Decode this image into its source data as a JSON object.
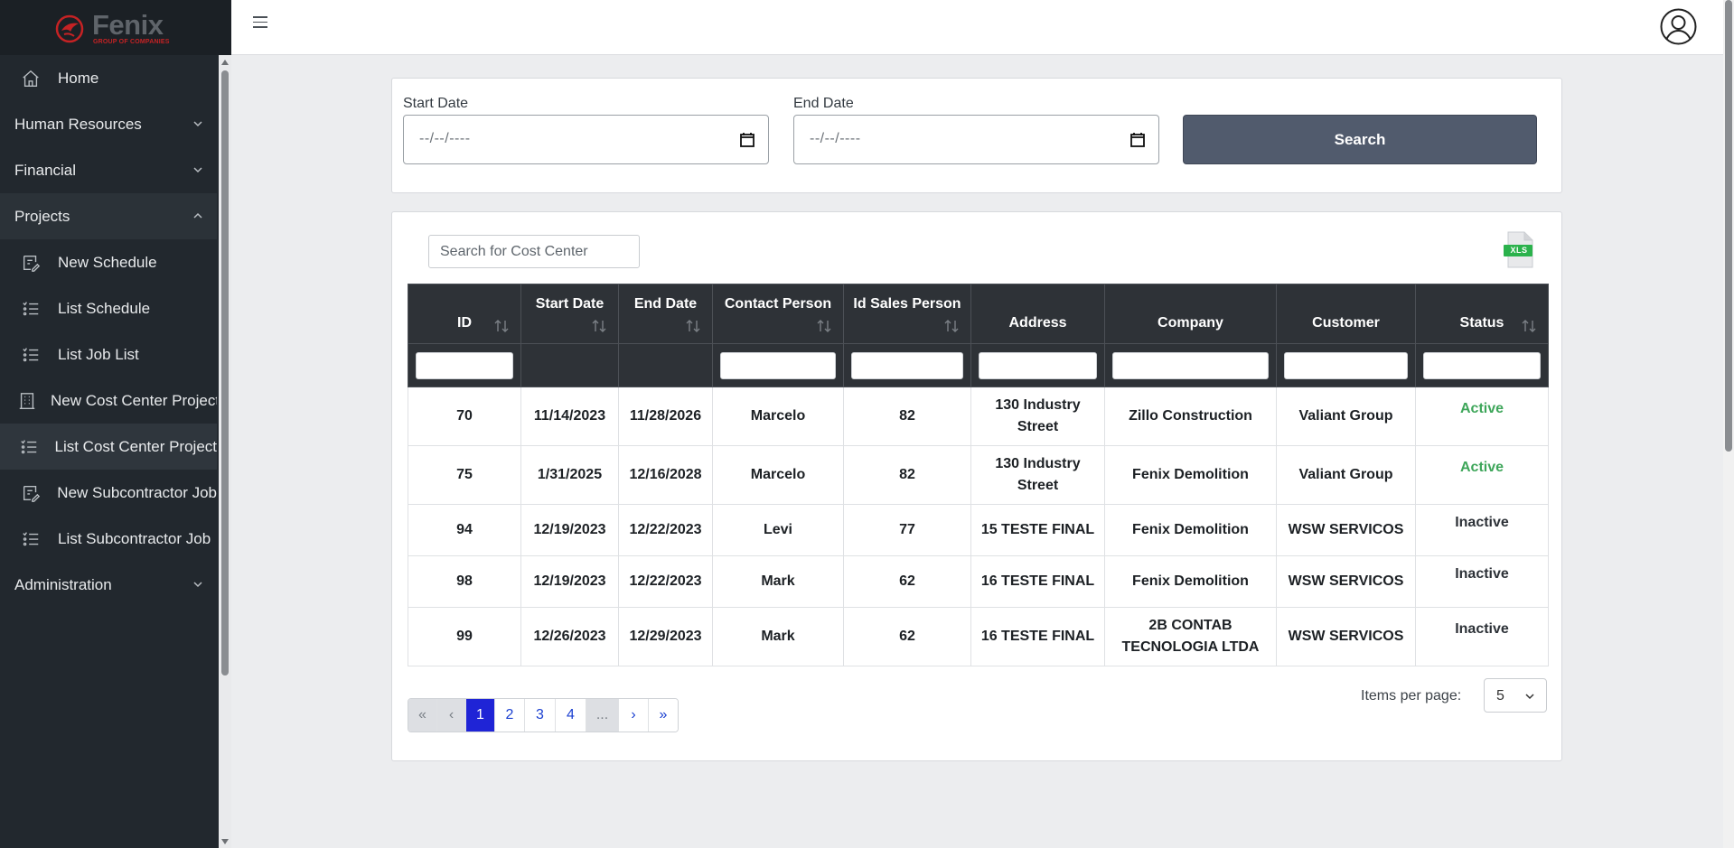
{
  "brand": {
    "name": "Fenix",
    "tagline": "GROUP OF COMPANIES"
  },
  "sidebar": {
    "items": [
      {
        "label": "Home",
        "icon": "home-icon"
      },
      {
        "label": "Human Resources",
        "icon": "chevron-down-icon"
      },
      {
        "label": "Financial",
        "icon": "chevron-down-icon"
      },
      {
        "label": "Projects",
        "icon": "chevron-up-icon"
      },
      {
        "label": "New Schedule",
        "icon": "edit-note-icon"
      },
      {
        "label": "List Schedule",
        "icon": "list-icon"
      },
      {
        "label": "List Job List",
        "icon": "list-icon"
      },
      {
        "label": "New Cost Center Project",
        "icon": "building-icon"
      },
      {
        "label": "List Cost Center Project",
        "icon": "list-icon"
      },
      {
        "label": "New Subcontractor Job",
        "icon": "edit-note-icon"
      },
      {
        "label": "List Subcontractor Job",
        "icon": "list-icon"
      },
      {
        "label": "Administration",
        "icon": "chevron-down-icon"
      }
    ]
  },
  "filters": {
    "start_label": "Start Date",
    "end_label": "End Date",
    "date_placeholder": "--/--/----",
    "search_label": "Search"
  },
  "table": {
    "search_placeholder": "Search for Cost Center",
    "export_icon_label": "XLS",
    "columns": [
      "ID",
      "Start Date",
      "End Date",
      "Contact Person",
      "Id Sales Person",
      "Address",
      "Company",
      "Customer",
      "Status"
    ],
    "rows": [
      [
        "70",
        "11/14/2023",
        "11/28/2026",
        "Marcelo",
        "82",
        "130 Industry Street",
        "Zillo Construction",
        "Valiant Group",
        "Active"
      ],
      [
        "75",
        "1/31/2025",
        "12/16/2028",
        "Marcelo",
        "82",
        "130 Industry Street",
        "Fenix Demolition",
        "Valiant Group",
        "Active"
      ],
      [
        "94",
        "12/19/2023",
        "12/22/2023",
        "Levi",
        "77",
        "15 TESTE FINAL",
        "Fenix Demolition",
        "WSW SERVICOS",
        "Inactive"
      ],
      [
        "98",
        "12/19/2023",
        "12/22/2023",
        "Mark",
        "62",
        "16 TESTE FINAL",
        "Fenix Demolition",
        "WSW SERVICOS",
        "Inactive"
      ],
      [
        "99",
        "12/26/2023",
        "12/29/2023",
        "Mark",
        "62",
        "16 TESTE FINAL",
        "2B CONTAB TECNOLOGIA LTDA",
        "WSW SERVICOS",
        "Inactive"
      ]
    ]
  },
  "pagination": {
    "first": "«",
    "prev": "‹",
    "pages": [
      "1",
      "2",
      "3",
      "4"
    ],
    "ellipsis": "...",
    "next": "›",
    "last": "»",
    "current": "1",
    "items_per_page_label": "Items per page:",
    "items_per_page_value": "5"
  },
  "colors": {
    "sidebar_bg": "#22282e",
    "header_bg": "#2e3237",
    "active_status": "#3ea65a",
    "search_button": "#515b6d",
    "page_active": "#1f24d6",
    "brand_red": "#c52224"
  }
}
